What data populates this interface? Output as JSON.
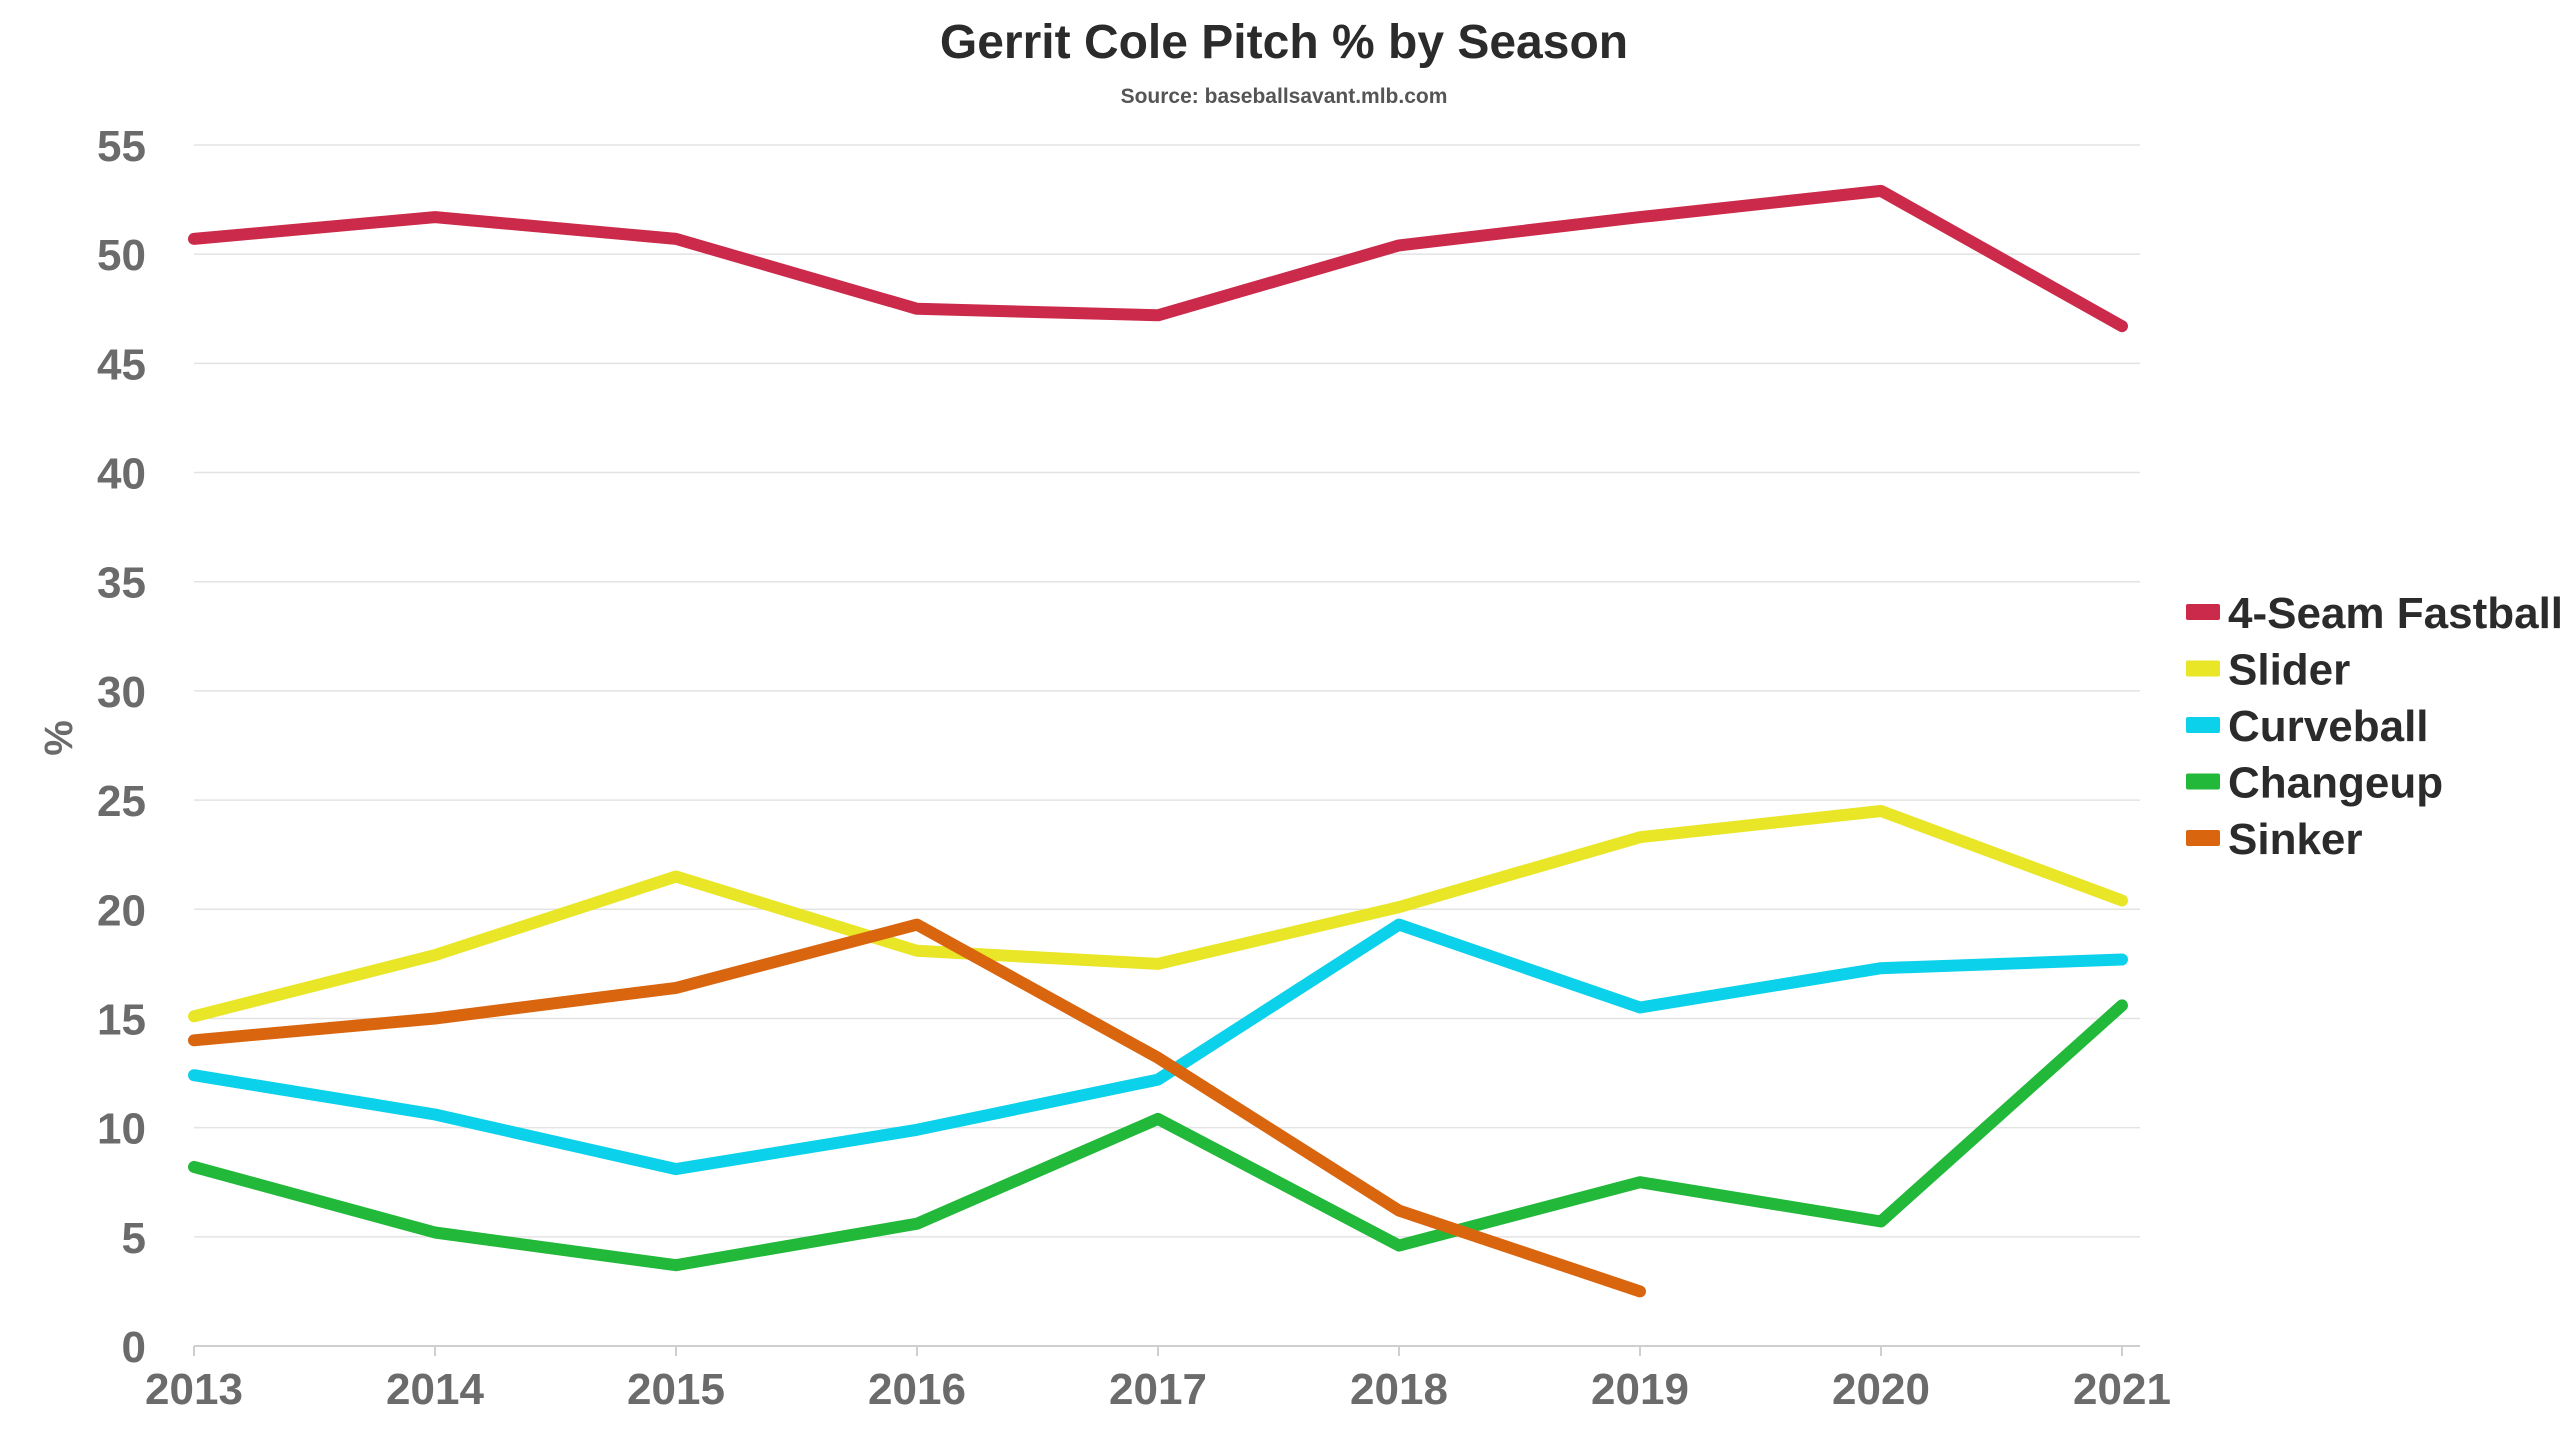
{
  "chart_data": {
    "type": "line",
    "title": "Gerrit Cole Pitch % by Season",
    "subtitle": "Source: baseballsavant.mlb.com",
    "xlabel": "",
    "ylabel": "%",
    "x": [
      "2013",
      "2014",
      "2015",
      "2016",
      "2017",
      "2018",
      "2019",
      "2020",
      "2021"
    ],
    "ylim": [
      0,
      55
    ],
    "yticks": [
      "0",
      "5",
      "10",
      "15",
      "20",
      "25",
      "30",
      "35",
      "40",
      "45",
      "50",
      "55"
    ],
    "grid": true,
    "legend_position": "right",
    "series": [
      {
        "name": "4-Seam Fastball",
        "color": "#cc2a4a",
        "values": [
          50.7,
          51.7,
          50.7,
          47.5,
          47.2,
          50.4,
          51.7,
          52.9,
          46.7
        ]
      },
      {
        "name": "Slider",
        "color": "#e8e626",
        "values": [
          15.1,
          17.9,
          21.5,
          18.1,
          17.5,
          20.1,
          23.3,
          24.5,
          20.4
        ]
      },
      {
        "name": "Curveball",
        "color": "#0bd1ea",
        "values": [
          12.4,
          10.6,
          8.1,
          9.9,
          12.2,
          19.3,
          15.5,
          17.3,
          17.7
        ]
      },
      {
        "name": "Changeup",
        "color": "#22b83a",
        "values": [
          8.2,
          5.2,
          3.7,
          5.6,
          10.4,
          4.6,
          7.5,
          5.7,
          15.6
        ]
      },
      {
        "name": "Sinker",
        "color": "#d9650f",
        "values": [
          14.0,
          15.0,
          16.4,
          19.3,
          13.2,
          6.2,
          2.5,
          null,
          null
        ]
      }
    ]
  }
}
